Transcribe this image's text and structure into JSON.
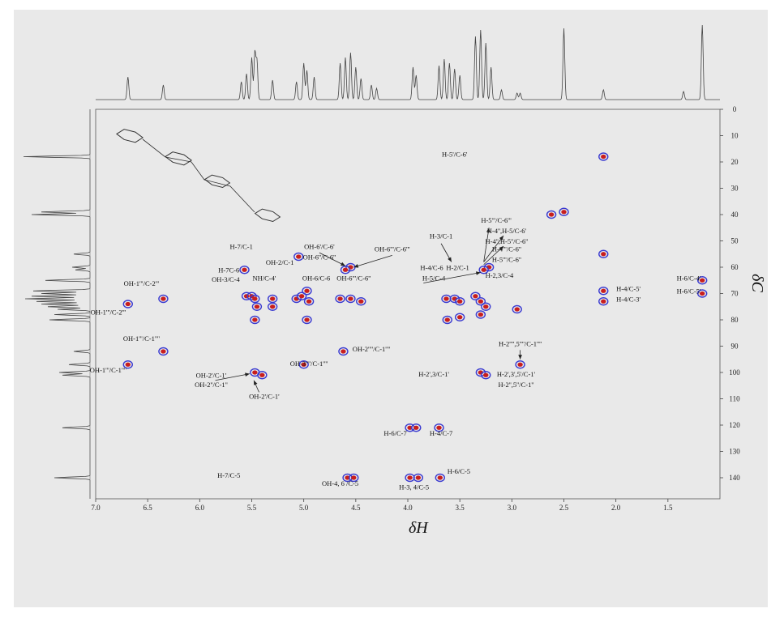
{
  "chart_data": {
    "type": "scatter",
    "title": "",
    "xlabel": "δH",
    "ylabel": "δC",
    "xlim": [
      7.0,
      1.0
    ],
    "ylim": [
      0,
      148
    ],
    "x_ticks": [
      "7.0",
      "6.5",
      "6.0",
      "5.5",
      "5.0",
      "4.5",
      "4.0",
      "3.5",
      "3.0",
      "2.5",
      "2.0",
      "1.5"
    ],
    "y_ticks": [
      "0",
      "10",
      "20",
      "30",
      "40",
      "50",
      "60",
      "70",
      "80",
      "90",
      "100",
      "110",
      "120",
      "130",
      "140"
    ],
    "series": [
      {
        "values": [
          {
            "x": 6.69,
            "y": 74
          },
          {
            "x": 6.35,
            "y": 72
          },
          {
            "x": 6.69,
            "y": 97
          },
          {
            "x": 6.35,
            "y": 92
          },
          {
            "x": 5.57,
            "y": 61
          },
          {
            "x": 5.55,
            "y": 71
          },
          {
            "x": 5.5,
            "y": 71
          },
          {
            "x": 5.47,
            "y": 72
          },
          {
            "x": 5.45,
            "y": 75
          },
          {
            "x": 5.47,
            "y": 80
          },
          {
            "x": 5.3,
            "y": 72
          },
          {
            "x": 5.3,
            "y": 75
          },
          {
            "x": 5.47,
            "y": 100
          },
          {
            "x": 5.4,
            "y": 101
          },
          {
            "x": 5.05,
            "y": 56
          },
          {
            "x": 5.07,
            "y": 72
          },
          {
            "x": 5.02,
            "y": 71
          },
          {
            "x": 4.97,
            "y": 69
          },
          {
            "x": 4.95,
            "y": 73
          },
          {
            "x": 4.97,
            "y": 80
          },
          {
            "x": 5.0,
            "y": 97
          },
          {
            "x": 4.65,
            "y": 72
          },
          {
            "x": 4.55,
            "y": 72
          },
          {
            "x": 4.45,
            "y": 73
          },
          {
            "x": 4.55,
            "y": 60
          },
          {
            "x": 4.6,
            "y": 61
          },
          {
            "x": 4.62,
            "y": 92
          },
          {
            "x": 4.58,
            "y": 140
          },
          {
            "x": 4.52,
            "y": 140
          },
          {
            "x": 3.98,
            "y": 121
          },
          {
            "x": 3.92,
            "y": 121
          },
          {
            "x": 3.98,
            "y": 140
          },
          {
            "x": 3.9,
            "y": 140
          },
          {
            "x": 3.7,
            "y": 121
          },
          {
            "x": 3.69,
            "y": 140
          },
          {
            "x": 3.63,
            "y": 72
          },
          {
            "x": 3.55,
            "y": 72
          },
          {
            "x": 3.5,
            "y": 73
          },
          {
            "x": 3.62,
            "y": 80
          },
          {
            "x": 3.5,
            "y": 79
          },
          {
            "x": 3.35,
            "y": 71
          },
          {
            "x": 3.3,
            "y": 73
          },
          {
            "x": 3.25,
            "y": 75
          },
          {
            "x": 3.3,
            "y": 78
          },
          {
            "x": 3.22,
            "y": 60
          },
          {
            "x": 3.27,
            "y": 61
          },
          {
            "x": 3.3,
            "y": 100
          },
          {
            "x": 3.25,
            "y": 101
          },
          {
            "x": 2.95,
            "y": 76
          },
          {
            "x": 2.92,
            "y": 97
          },
          {
            "x": 2.5,
            "y": 39
          },
          {
            "x": 2.62,
            "y": 40
          },
          {
            "x": 2.12,
            "y": 55
          },
          {
            "x": 2.12,
            "y": 69
          },
          {
            "x": 2.12,
            "y": 73
          },
          {
            "x": 2.12,
            "y": 18
          },
          {
            "x": 1.17,
            "y": 65
          },
          {
            "x": 1.17,
            "y": 70
          }
        ]
      }
    ],
    "annotations": [
      {
        "text": "H-5'/C-6'",
        "x": 3.55,
        "y": 18
      },
      {
        "text": "H-7/C-1",
        "x": 5.6,
        "y": 53
      },
      {
        "text": "OH-2/C-1",
        "x": 5.23,
        "y": 59
      },
      {
        "text": "H-7C-6",
        "x": 5.72,
        "y": 62
      },
      {
        "text": "OH-3/C-4",
        "x": 5.75,
        "y": 65.5
      },
      {
        "text": "NH/C-4'",
        "x": 5.38,
        "y": 65
      },
      {
        "text": "OH-6/C-6",
        "x": 4.88,
        "y": 65
      },
      {
        "text": "OH-6'/C-6'",
        "x": 4.85,
        "y": 53
      },
      {
        "text": "OH-6''/C-6''",
        "x": 4.85,
        "y": 57
      },
      {
        "text": "OH-6'''/C-6'''",
        "x": 4.15,
        "y": 54
      },
      {
        "text": "OH-6'''/C-6''",
        "x": 4.52,
        "y": 65
      },
      {
        "text": "H-3/C-1",
        "x": 3.68,
        "y": 49
      },
      {
        "text": "H-2/C-1",
        "x": 3.52,
        "y": 61
      },
      {
        "text": "H-4/C-6",
        "x": 3.77,
        "y": 61
      },
      {
        "text": "H-5/C-4",
        "x": 3.75,
        "y": 65
      },
      {
        "text": "H-2,3/C-4",
        "x": 3.12,
        "y": 64
      },
      {
        "text": "H-5'''/C-6'''",
        "x": 3.15,
        "y": 43
      },
      {
        "text": "H-4'',H-5/C-6'",
        "x": 3.05,
        "y": 47
      },
      {
        "text": "H-4'',H-5''/C-6''",
        "x": 3.05,
        "y": 51
      },
      {
        "text": "H-4'''/C-6''",
        "x": 3.05,
        "y": 54
      },
      {
        "text": "H-5'''/C-6''",
        "x": 3.05,
        "y": 58
      },
      {
        "text": "H-4/C-5'",
        "x": 1.88,
        "y": 69
      },
      {
        "text": "H-4/C-3'",
        "x": 1.88,
        "y": 73
      },
      {
        "text": "H-6/C-4'",
        "x": 1.3,
        "y": 65
      },
      {
        "text": "H-6/C-5'",
        "x": 1.3,
        "y": 70
      },
      {
        "text": "OH-1'''/C-2'''",
        "x": 6.56,
        "y": 67
      },
      {
        "text": "OH-1'''/C-2'''",
        "x": 6.88,
        "y": 78
      },
      {
        "text": "OH-1'''/C-1''''",
        "x": 6.56,
        "y": 88
      },
      {
        "text": "OH-1'''/C-1''''",
        "x": 6.88,
        "y": 100
      },
      {
        "text": "OH-2'/C-1'",
        "x": 5.89,
        "y": 102
      },
      {
        "text": "OH-2''/C-1''",
        "x": 5.89,
        "y": 105.5
      },
      {
        "text": "OH-2'/C-1'",
        "x": 5.38,
        "y": 110
      },
      {
        "text": "OH-3''''/C-1''''",
        "x": 4.95,
        "y": 97.5
      },
      {
        "text": "OH-2''''/C-1''''",
        "x": 4.35,
        "y": 92
      },
      {
        "text": "H-2',3/C-1'",
        "x": 3.75,
        "y": 101.5
      },
      {
        "text": "H-2'''',5''''/C-1''''",
        "x": 2.92,
        "y": 90
      },
      {
        "text": "H-2',3',5'/C-1'",
        "x": 2.96,
        "y": 101.5
      },
      {
        "text": "H-2'',5''/C-1''",
        "x": 2.96,
        "y": 105.5
      },
      {
        "text": "H-6/C-7",
        "x": 4.12,
        "y": 124
      },
      {
        "text": "H-4/C-7",
        "x": 3.68,
        "y": 124
      },
      {
        "text": "H-7/C-5",
        "x": 5.72,
        "y": 140
      },
      {
        "text": "OH-4, 6 /C-5",
        "x": 4.65,
        "y": 143
      },
      {
        "text": "H-3, 4/C-5",
        "x": 3.94,
        "y": 144.5
      },
      {
        "text": "H-6/C-5",
        "x": 3.51,
        "y": 138.5
      }
    ],
    "grid": false,
    "legend": "none"
  },
  "colors": {
    "panel": "#e9e9e9",
    "contour_outer": "#3a3ad0",
    "contour_inner": "#c81e1e",
    "spectrum": "#444444"
  }
}
